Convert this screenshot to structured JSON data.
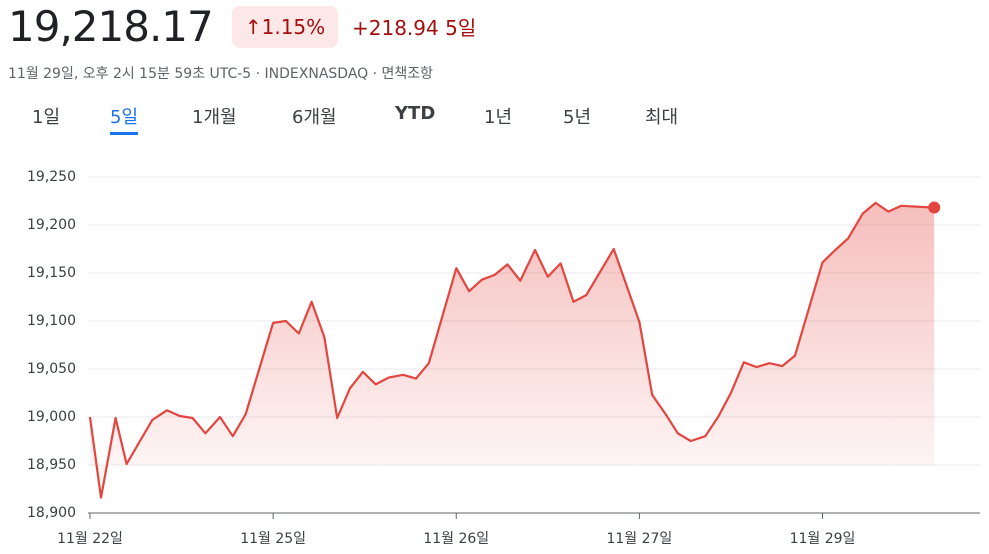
{
  "header": {
    "price": "19,218.17",
    "change_percent": "1.15%",
    "change": "+218.94",
    "period": "5일",
    "subtitle": "11월 29일, 오후 2시 15분 59초 UTC-5 · INDEXNASDAQ · 면책조항"
  },
  "tabs": [
    "1일",
    "5일",
    "1개월",
    "6개월",
    "YTD",
    "1년",
    "5년",
    "최대"
  ],
  "chart_data": {
    "type": "line",
    "xlim": [
      0,
      4.86
    ],
    "ylim": [
      18900,
      19250
    ],
    "xticks": [
      {
        "value": 0,
        "label": "11월 22일"
      },
      {
        "value": 1,
        "label": "11월 25일"
      },
      {
        "value": 2,
        "label": "11월 26일"
      },
      {
        "value": 3,
        "label": "11월 27일"
      },
      {
        "value": 4,
        "label": "11월 29일"
      }
    ],
    "yticks": [
      {
        "value": 18900,
        "label": "18,900"
      },
      {
        "value": 18950,
        "label": "18,950"
      },
      {
        "value": 19000,
        "label": "19,000"
      },
      {
        "value": 19050,
        "label": "19,050"
      },
      {
        "value": 19100,
        "label": "19,100"
      },
      {
        "value": 19150,
        "label": "19,150"
      },
      {
        "value": 19200,
        "label": "19,200"
      },
      {
        "value": 19250,
        "label": "19,250"
      }
    ],
    "grid": true,
    "series": [
      {
        "color": "#e3453f",
        "x": [
          0,
          0.06,
          0.14,
          0.2,
          0.34,
          0.42,
          0.49,
          0.56,
          0.63,
          0.71,
          0.78,
          0.85,
          1.0,
          1.07,
          1.14,
          1.21,
          1.28,
          1.35,
          1.42,
          1.49,
          1.56,
          1.63,
          1.71,
          1.78,
          1.85,
          2.0,
          2.07,
          2.14,
          2.21,
          2.28,
          2.35,
          2.43,
          2.5,
          2.57,
          2.64,
          2.71,
          2.86,
          3.0,
          3.07,
          3.14,
          3.21,
          3.28,
          3.36,
          3.43,
          3.5,
          3.57,
          3.64,
          3.71,
          3.78,
          3.85,
          4.0,
          4.07,
          4.14,
          4.22,
          4.29,
          4.36,
          4.43,
          4.61
        ],
        "values": [
          19000,
          18916,
          18999,
          18951,
          18997,
          19007,
          19001,
          18999,
          18983,
          19000,
          18980,
          19003,
          19098,
          19100,
          19087,
          19120,
          19083,
          18999,
          19030,
          19047,
          19034,
          19041,
          19044,
          19040,
          19056,
          19155,
          19131,
          19143,
          19148,
          19159,
          19142,
          19174,
          19146,
          19160,
          19120,
          19127,
          19175,
          19099,
          19023,
          19004,
          18983,
          18975,
          18980,
          19000,
          19025,
          19057,
          19052,
          19056,
          19053,
          19064,
          19161,
          19174,
          19186,
          19212,
          19223,
          19214,
          19220,
          19218.17
        ]
      }
    ]
  }
}
